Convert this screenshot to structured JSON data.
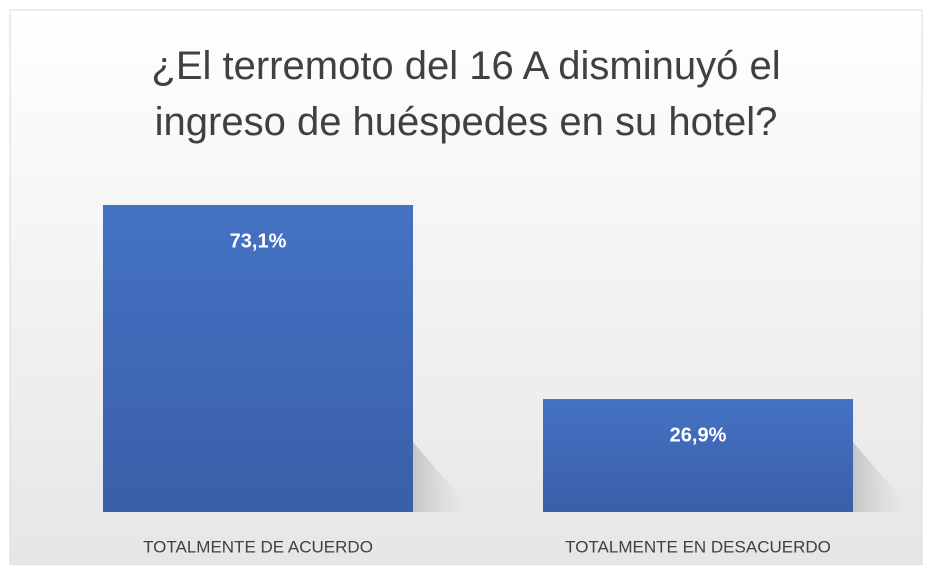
{
  "chart_data": {
    "type": "bar",
    "title": "¿El terremoto del 16 A disminuyó el ingreso de huéspedes en su hotel?",
    "categories": [
      "TOTALMENTE DE ACUERDO",
      "TOTALMENTE EN DESACUERDO"
    ],
    "values": [
      73.1,
      26.9
    ],
    "value_labels": [
      "73,1%",
      "26,9%"
    ],
    "color": "#4472c4"
  }
}
